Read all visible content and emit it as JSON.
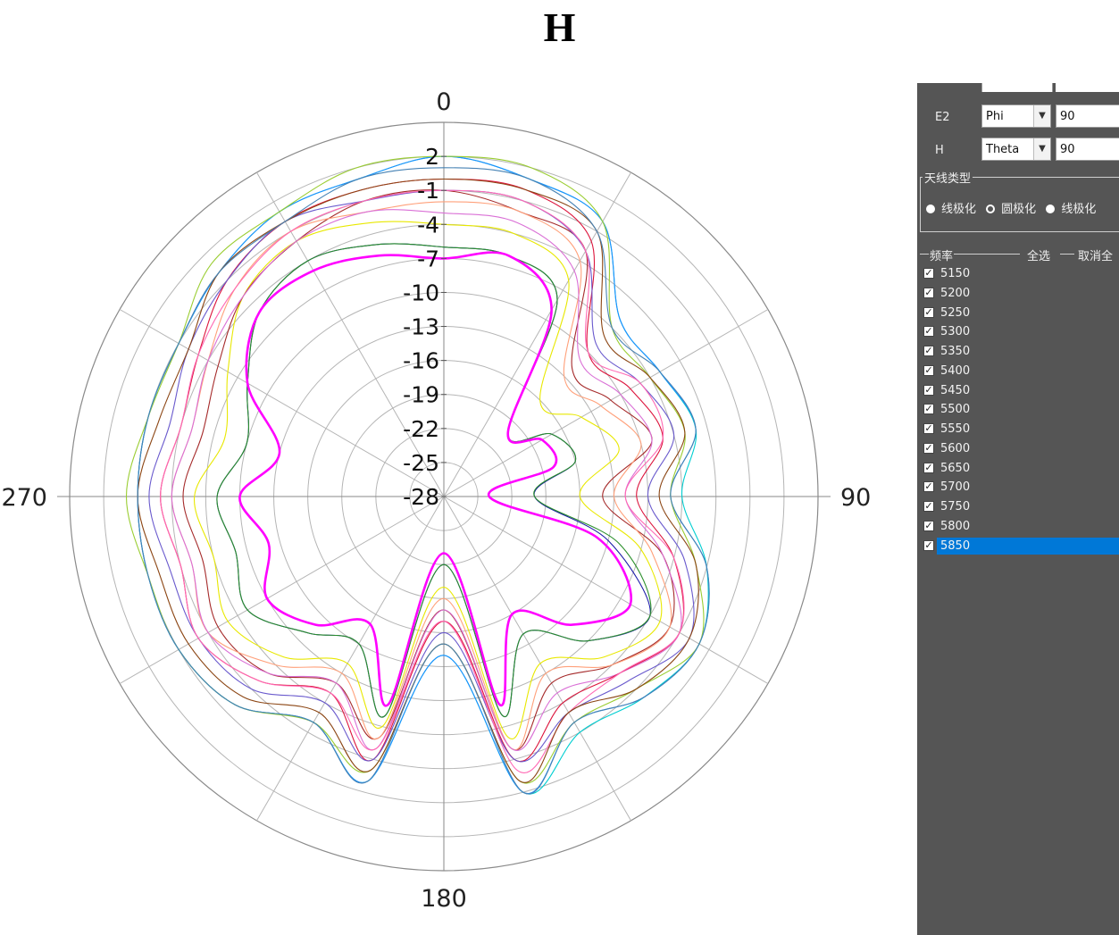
{
  "title": "H",
  "chart_data": {
    "type": "polar-line",
    "title": "H",
    "angle_labels": [
      "0",
      "90",
      "180",
      "270"
    ],
    "radial_axis": {
      "min": -28,
      "max": 5,
      "ticks": [
        "2",
        "-1",
        "-4",
        "-7",
        "-10",
        "-13",
        "-16",
        "-19",
        "-22",
        "-25",
        "-28"
      ],
      "tick_values": [
        2,
        -1,
        -4,
        -7,
        -10,
        -13,
        -16,
        -19,
        -22,
        -25,
        -28
      ]
    },
    "grid": true,
    "angles_deg": [
      0,
      15,
      30,
      45,
      60,
      75,
      90,
      105,
      120,
      135,
      150,
      165,
      180,
      195,
      210,
      225,
      240,
      255,
      270,
      285,
      300,
      315,
      330,
      345
    ],
    "series": [
      {
        "color": "#ff00ff",
        "emphasis": true,
        "values": [
          -7,
          -6,
          -9,
          -20,
          -18,
          -18,
          -24,
          -14,
          -9,
          -12,
          -16,
          -9,
          -23,
          -9,
          -15,
          -12,
          -10,
          -12,
          -10,
          -13,
          -8,
          -5,
          -5,
          -6
        ]
      },
      {
        "color": "#1a1aa8",
        "values": [
          -6,
          -6,
          -8,
          -20,
          -17,
          -16,
          -20,
          -13,
          -7,
          -10,
          -14,
          -8,
          -22,
          -8,
          -13,
          -11,
          -8,
          -9,
          -8,
          -10,
          -8,
          -5,
          -4,
          -5
        ]
      },
      {
        "color": "#2a8f2a",
        "values": [
          -6,
          -6,
          -8,
          -20,
          -17,
          -16,
          -20,
          -12,
          -7,
          -10,
          -14,
          -8,
          -22,
          -8,
          -13,
          -11,
          -8,
          -9,
          -8,
          -10,
          -8,
          -5,
          -4,
          -5
        ]
      },
      {
        "color": "#e8e800",
        "values": [
          -4,
          -4,
          -6,
          -16,
          -14,
          -12,
          -16,
          -10,
          -6,
          -8,
          -11,
          -6,
          -20,
          -7,
          -11,
          -8,
          -6,
          -7,
          -6,
          -8,
          -6,
          -3,
          -2,
          -3
        ]
      },
      {
        "color": "#a52a2a",
        "values": [
          -1,
          -2,
          -3,
          -12,
          -11,
          -9,
          -14,
          -8,
          -5,
          -7,
          -9,
          -5,
          -18,
          -6,
          -9,
          -6,
          -5,
          -6,
          -5,
          -6,
          -5,
          -3,
          -2,
          -1
        ]
      },
      {
        "color": "#ffa07a",
        "values": [
          -2,
          -2,
          -4,
          -13,
          -12,
          -10,
          -13,
          -9,
          -5,
          -7,
          -10,
          -5,
          -19,
          -6,
          -10,
          -7,
          -4,
          -5,
          -4,
          -5,
          -4,
          -2,
          -1,
          -2
        ]
      },
      {
        "color": "#da70d6",
        "values": [
          -3,
          -3,
          -5,
          -11,
          -10,
          -9,
          -12,
          -8,
          -4,
          -6,
          -8,
          -5,
          -18,
          -5,
          -9,
          -6,
          -4,
          -5,
          -4,
          -5,
          -4,
          -3,
          -2,
          -2
        ]
      },
      {
        "color": "#dc143c",
        "values": [
          0,
          0,
          -2,
          -10,
          -9,
          -8,
          -11,
          -7,
          -4,
          -6,
          -7,
          -4,
          -17,
          -4,
          -8,
          -5,
          -3,
          -4,
          -3,
          -4,
          -3,
          -1,
          0,
          0
        ]
      },
      {
        "color": "#6a5acd",
        "values": [
          -1,
          -1,
          -3,
          -9,
          -8,
          -7,
          -10,
          -6,
          -3,
          -5,
          -6,
          -4,
          -16,
          -4,
          -7,
          -4,
          -3,
          -3,
          -2,
          -3,
          -2,
          -1,
          0,
          -1
        ]
      },
      {
        "color": "#ff69b4",
        "values": [
          -1,
          -1,
          -3,
          -10,
          -8,
          -8,
          -12,
          -7,
          -4,
          -6,
          -6,
          -3,
          -17,
          -5,
          -8,
          -5,
          -3,
          -4,
          -3,
          -4,
          -3,
          -2,
          -1,
          -1
        ]
      },
      {
        "color": "#00ced1",
        "values": [
          2,
          1,
          0,
          -6,
          -6,
          -5,
          -7,
          -4,
          -2,
          -3,
          -4,
          -1,
          -14,
          -2,
          -5,
          -2,
          -1,
          -1,
          -1,
          -1,
          -1,
          0,
          1,
          1
        ]
      },
      {
        "color": "#1e90ff",
        "values": [
          2,
          1,
          0,
          -6,
          -6,
          -5,
          -8,
          -4,
          -2,
          -3,
          -5,
          -1,
          -14,
          -2,
          -5,
          -2,
          -1,
          -1,
          -1,
          -1,
          -1,
          0,
          1,
          1
        ]
      },
      {
        "color": "#9acd32",
        "values": [
          2,
          2,
          0,
          -7,
          -7,
          -6,
          -8,
          -5,
          -2,
          -4,
          -5,
          -2,
          -15,
          -3,
          -5,
          -2,
          -1,
          -1,
          0,
          -1,
          -1,
          1,
          1,
          2
        ]
      },
      {
        "color": "#8b4513",
        "values": [
          0,
          0,
          -1,
          -8,
          -7,
          -6,
          -9,
          -5,
          -3,
          -4,
          -6,
          -2,
          -15,
          -3,
          -6,
          -3,
          -2,
          -2,
          -1,
          -2,
          -2,
          0,
          0,
          0
        ]
      },
      {
        "color": "#4682b4",
        "values": [
          1,
          1,
          -1,
          -7,
          -6,
          -5,
          -8,
          -4,
          -2,
          -3,
          -5,
          -1,
          -15,
          -2,
          -5,
          -2,
          -1,
          -1,
          -1,
          -1,
          -1,
          0,
          0,
          1
        ]
      }
    ]
  },
  "panel": {
    "rows": [
      {
        "label": "E2",
        "axis": "Phi",
        "value": "90"
      },
      {
        "label": "H",
        "axis": "Theta",
        "value": "90"
      }
    ],
    "antenna_type_title": "天线类型",
    "antenna_options": [
      "线极化",
      "圆极化",
      "线极化"
    ],
    "frequency_title": "频率",
    "select_all": "全选",
    "deselect_all": "取消全",
    "frequencies": [
      "5150",
      "5200",
      "5250",
      "5300",
      "5350",
      "5400",
      "5450",
      "5500",
      "5550",
      "5600",
      "5650",
      "5700",
      "5750",
      "5800",
      "5850"
    ],
    "selected_frequency": "5850",
    "selection_color": "#0078d7"
  }
}
